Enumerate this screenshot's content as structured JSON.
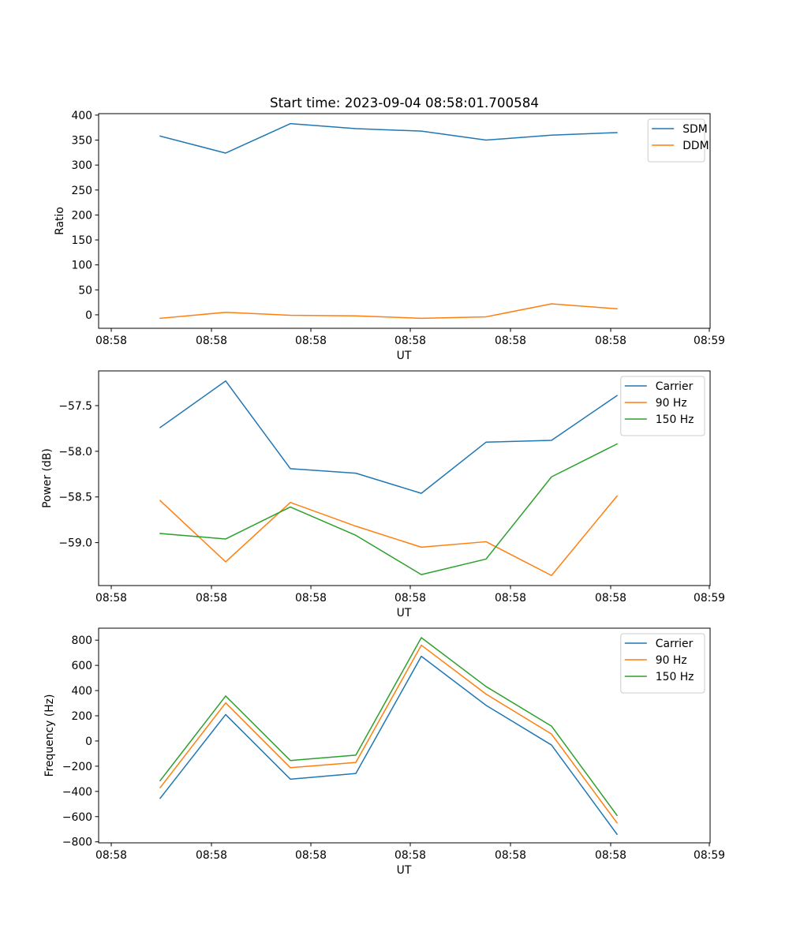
{
  "figure_title": "Start time: 2023-09-04 08:58:01.700584",
  "chart_data": [
    {
      "type": "line",
      "title": "Start time: 2023-09-04 08:58:01.700584",
      "xlabel": "UT",
      "ylabel": "Ratio",
      "x_tick_labels": [
        "08:58",
        "08:58",
        "08:58",
        "08:58",
        "08:58",
        "08:58",
        "08:59"
      ],
      "y_ticks": [
        0,
        50,
        100,
        150,
        200,
        250,
        300,
        350,
        400
      ],
      "ylim": [
        -27,
        403
      ],
      "legend_position": "upper right",
      "series": [
        {
          "name": "SDM",
          "color": "#1f77b4",
          "values": [
            358,
            324,
            383,
            373,
            368,
            350,
            360,
            365
          ]
        },
        {
          "name": "DDM",
          "color": "#ff7f0e",
          "values": [
            -7,
            5,
            -1,
            -2,
            -7,
            -4,
            22,
            12
          ]
        }
      ]
    },
    {
      "type": "line",
      "title": "",
      "xlabel": "UT",
      "ylabel": "Power (dB)",
      "x_tick_labels": [
        "08:58",
        "08:58",
        "08:58",
        "08:58",
        "08:58",
        "08:58",
        "08:59"
      ],
      "y_ticks": [
        -59.0,
        -58.5,
        -58.0,
        -57.5
      ],
      "y_tick_labels": [
        "−59.0",
        "−58.5",
        "−58.0",
        "−57.5"
      ],
      "ylim": [
        -59.47,
        -57.12
      ],
      "legend_position": "upper right",
      "series": [
        {
          "name": "Carrier",
          "color": "#1f77b4",
          "values": [
            -57.74,
            -57.23,
            -58.19,
            -58.24,
            -58.46,
            -57.9,
            -57.88,
            -57.39
          ]
        },
        {
          "name": "90 Hz",
          "color": "#ff7f0e",
          "values": [
            -58.54,
            -59.21,
            -58.56,
            -58.82,
            -59.05,
            -58.99,
            -59.36,
            -58.49
          ]
        },
        {
          "name": "150 Hz",
          "color": "#2ca02c",
          "values": [
            -58.9,
            -58.96,
            -58.61,
            -58.92,
            -59.35,
            -59.18,
            -58.28,
            -57.92
          ]
        }
      ]
    },
    {
      "type": "line",
      "title": "",
      "xlabel": "UT",
      "ylabel": "Frequency (Hz)",
      "x_tick_labels": [
        "08:58",
        "08:58",
        "08:58",
        "08:58",
        "08:58",
        "08:58",
        "08:59"
      ],
      "y_ticks": [
        -800,
        -600,
        -400,
        -200,
        0,
        200,
        400,
        600,
        800
      ],
      "y_tick_labels": [
        "−800",
        "−600",
        "−400",
        "−200",
        "0",
        "200",
        "400",
        "600",
        "800"
      ],
      "ylim": [
        -808,
        895
      ],
      "legend_position": "upper right",
      "series": [
        {
          "name": "Carrier",
          "color": "#1f77b4",
          "values": [
            -455,
            210,
            -303,
            -258,
            672,
            283,
            -32,
            -740
          ]
        },
        {
          "name": "90 Hz",
          "color": "#ff7f0e",
          "values": [
            -370,
            302,
            -212,
            -170,
            760,
            372,
            55,
            -650
          ]
        },
        {
          "name": "150 Hz",
          "color": "#2ca02c",
          "values": [
            -315,
            357,
            -155,
            -112,
            820,
            432,
            118,
            -590
          ]
        }
      ]
    }
  ]
}
